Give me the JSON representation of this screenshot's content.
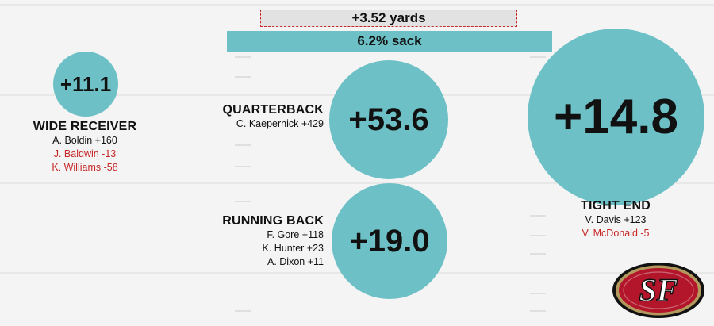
{
  "bars": {
    "yards": "+3.52 yards",
    "sack": "6.2% sack"
  },
  "positions": {
    "wide_receiver": {
      "value": "+11.1",
      "title": "WIDE RECEIVER",
      "players": [
        {
          "text": "A. Boldin +160",
          "negative": false
        },
        {
          "text": "J. Baldwin -13",
          "negative": true
        },
        {
          "text": "K. Williams -58",
          "negative": true
        }
      ]
    },
    "quarterback": {
      "value": "+53.6",
      "title": "QUARTERBACK",
      "players": [
        {
          "text": "C. Kaepernick +429",
          "negative": false
        }
      ]
    },
    "running_back": {
      "value": "+19.0",
      "title": "RUNNING BACK",
      "players": [
        {
          "text": "F. Gore +118",
          "negative": false
        },
        {
          "text": "K. Hunter +23",
          "negative": false
        },
        {
          "text": "A. Dixon +11",
          "negative": false
        }
      ]
    },
    "tight_end": {
      "value": "+14.8",
      "title": "TIGHT END",
      "players": [
        {
          "text": "V. Davis +123",
          "negative": false
        },
        {
          "text": "V. McDonald -5",
          "negative": true
        }
      ]
    }
  },
  "logo": {
    "text": "SF"
  },
  "colors": {
    "circle": "#6cc0c6",
    "negative_text": "#c62828",
    "logo_red": "#b3162b",
    "logo_gold": "#b3995d"
  }
}
